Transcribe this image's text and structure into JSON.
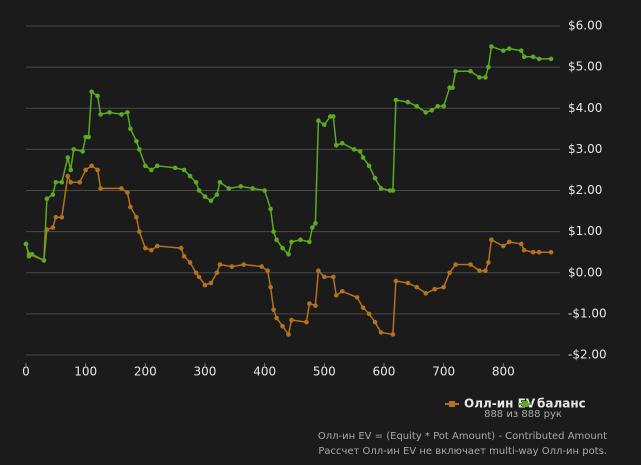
{
  "chart_data": {
    "type": "line",
    "xlim": [
      0,
      895
    ],
    "xticks": [
      0,
      100,
      200,
      300,
      400,
      500,
      600,
      700,
      800
    ],
    "ylim": [
      -2,
      6
    ],
    "yticks": [
      {
        "value": -2,
        "label": "-$2.00"
      },
      {
        "value": -1,
        "label": "-$1.00"
      },
      {
        "value": 0,
        "label": "$0.00"
      },
      {
        "value": 1,
        "label": "$1.00"
      },
      {
        "value": 2,
        "label": "$2.00"
      },
      {
        "value": 3,
        "label": "$3.00"
      },
      {
        "value": 4,
        "label": "$4.00"
      },
      {
        "value": 5,
        "label": "$5.00"
      },
      {
        "value": 6,
        "label": "$6.00"
      }
    ],
    "grid": true,
    "series": [
      {
        "name": "Олл-ин EV",
        "color": "#b5711b",
        "x": [
          0,
          5,
          30,
          35,
          45,
          50,
          60,
          70,
          75,
          90,
          100,
          110,
          120,
          125,
          160,
          170,
          175,
          185,
          190,
          200,
          210,
          220,
          260,
          265,
          275,
          285,
          290,
          300,
          310,
          320,
          325,
          345,
          365,
          395,
          405,
          410,
          415,
          420,
          430,
          440,
          445,
          470,
          475,
          485,
          490,
          500,
          515,
          520,
          530,
          555,
          565,
          575,
          585,
          595,
          615,
          620,
          640,
          655,
          670,
          685,
          700,
          710,
          720,
          745,
          760,
          770,
          775,
          780,
          800,
          810,
          830,
          835,
          850,
          860,
          880
        ],
        "values": [
          0.7,
          0.45,
          0.3,
          1.05,
          1.1,
          1.35,
          1.35,
          2.35,
          2.2,
          2.2,
          2.5,
          2.6,
          2.5,
          2.05,
          2.05,
          1.95,
          1.6,
          1.35,
          1.0,
          0.6,
          0.55,
          0.65,
          0.6,
          0.4,
          0.25,
          0.0,
          -0.1,
          -0.3,
          -0.25,
          0.0,
          0.2,
          0.15,
          0.2,
          0.15,
          0.05,
          -0.35,
          -0.9,
          -1.1,
          -1.3,
          -1.5,
          -1.15,
          -1.2,
          -0.75,
          -0.8,
          0.05,
          -0.1,
          -0.1,
          -0.55,
          -0.45,
          -0.6,
          -0.85,
          -1.0,
          -1.2,
          -1.45,
          -1.5,
          -0.2,
          -0.25,
          -0.35,
          -0.5,
          -0.4,
          -0.35,
          0.0,
          0.2,
          0.2,
          0.05,
          0.05,
          0.25,
          0.8,
          0.65,
          0.75,
          0.7,
          0.55,
          0.5,
          0.5,
          0.5
        ]
      },
      {
        "name": "баланс",
        "color": "#5caa22",
        "x": [
          0,
          5,
          10,
          30,
          35,
          45,
          50,
          60,
          70,
          75,
          80,
          95,
          100,
          105,
          110,
          120,
          125,
          140,
          160,
          170,
          175,
          185,
          190,
          200,
          210,
          220,
          250,
          265,
          275,
          285,
          290,
          300,
          310,
          320,
          325,
          340,
          360,
          380,
          400,
          410,
          415,
          420,
          430,
          440,
          445,
          460,
          475,
          480,
          485,
          490,
          500,
          510,
          515,
          520,
          530,
          550,
          560,
          565,
          575,
          585,
          595,
          610,
          615,
          620,
          640,
          655,
          670,
          680,
          690,
          700,
          710,
          715,
          720,
          745,
          760,
          770,
          775,
          780,
          800,
          810,
          830,
          835,
          850,
          860,
          880
        ],
        "values": [
          0.7,
          0.4,
          0.45,
          0.3,
          1.8,
          1.9,
          2.2,
          2.2,
          2.8,
          2.5,
          3.0,
          2.95,
          3.3,
          3.3,
          4.4,
          4.3,
          3.85,
          3.9,
          3.85,
          3.9,
          3.5,
          3.2,
          3.0,
          2.6,
          2.5,
          2.6,
          2.55,
          2.5,
          2.35,
          2.2,
          2.0,
          1.85,
          1.75,
          1.9,
          2.2,
          2.05,
          2.1,
          2.05,
          2.0,
          1.55,
          1.0,
          0.8,
          0.6,
          0.45,
          0.75,
          0.8,
          0.75,
          1.1,
          1.2,
          3.7,
          3.6,
          3.8,
          3.8,
          3.1,
          3.15,
          3.0,
          2.95,
          2.8,
          2.6,
          2.3,
          2.05,
          2.0,
          2.0,
          4.2,
          4.15,
          4.05,
          3.9,
          3.95,
          4.05,
          4.05,
          4.5,
          4.5,
          4.9,
          4.9,
          4.75,
          4.75,
          5.0,
          5.5,
          5.4,
          5.45,
          5.4,
          5.25,
          5.25,
          5.2,
          5.2
        ]
      }
    ],
    "hands_label": "888 из 888 рук",
    "footnote": [
      "Олл-ин EV = (Equity * Pot Amount) - Contributed Amount",
      "Рассчет Олл-ин EV не включает multi-way Олл-ин pots."
    ]
  }
}
